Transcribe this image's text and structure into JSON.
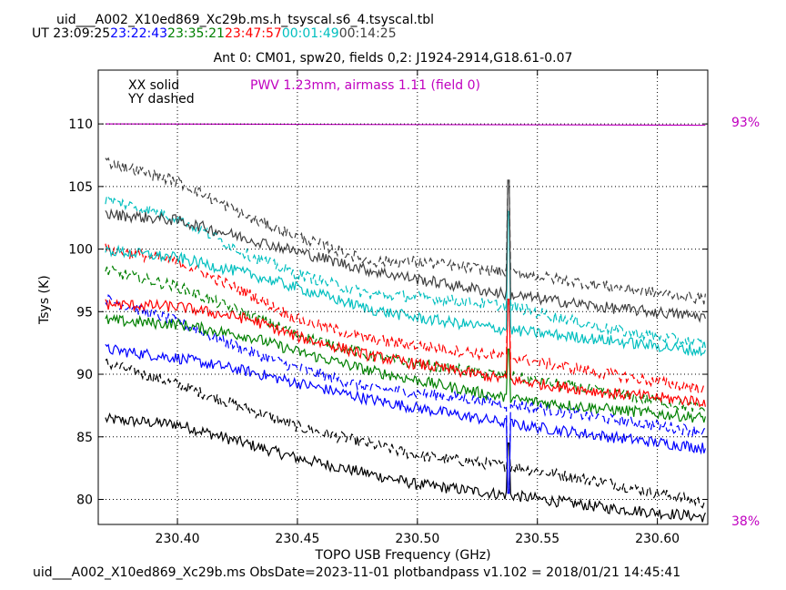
{
  "header": {
    "file_title": "uid___A002_X10ed869_Xc29b.ms.h_tsyscal.s6_4.tsyscal.tbl",
    "ut_label": "UT",
    "ut_times": [
      {
        "text": "23:09:25",
        "color": "#000000"
      },
      {
        "text": "23:22:43",
        "color": "#0000ff"
      },
      {
        "text": "23:35:21",
        "color": "#008000"
      },
      {
        "text": "23:47:57",
        "color": "#ff0000"
      },
      {
        "text": "00:01:49",
        "color": "#00bfbf"
      },
      {
        "text": "00:14:25",
        "color": "#404040"
      }
    ],
    "subtitle": "Ant 0: CM01,  spw20,  fields 0,2: J1924-2914,G18.61-0.07"
  },
  "footer": "uid___A002_X10ed869_Xc29b.ms  ObsDate=2023-11-01   plotbandpass v1.102 = 2018/01/21 14:45:41",
  "chart_data": {
    "type": "line",
    "xlabel": "TOPO USB Frequency (GHz)",
    "ylabel": "Tsys (K)",
    "xlim": [
      230.367,
      230.621
    ],
    "ylim": [
      78.0,
      114.3
    ],
    "xticks": [
      230.4,
      230.45,
      230.5,
      230.55,
      230.6
    ],
    "xtick_labels": [
      "230.40",
      "230.45",
      "230.50",
      "230.55",
      "230.60"
    ],
    "yticks": [
      80,
      85,
      90,
      95,
      100,
      105,
      110
    ],
    "ytick_labels": [
      "80",
      "85",
      "90",
      "95",
      "100",
      "105",
      "110"
    ],
    "grid": true,
    "annotations": {
      "legend_solid": "XX solid",
      "legend_dashed": "YY dashed",
      "pwv": "PWV 1.23mm, airmass 1.11 (field 0)",
      "pwv_color": "#c000c0",
      "right_top": "93%",
      "right_bottom": "38%"
    },
    "spike_x": 230.538,
    "series": [
      {
        "color": "#000000",
        "style": "solid",
        "x": [
          230.37,
          230.4,
          230.45,
          230.5,
          230.54,
          230.58,
          230.62
        ],
        "y": [
          86.4,
          86.0,
          83.3,
          81.2,
          80.3,
          79.3,
          78.6
        ],
        "spike": 84.5
      },
      {
        "color": "#000000",
        "style": "dashed",
        "x": [
          230.37,
          230.4,
          230.45,
          230.5,
          230.54,
          230.58,
          230.62
        ],
        "y": [
          90.9,
          89.2,
          85.8,
          83.5,
          82.6,
          81.3,
          79.7
        ],
        "spike": 84.5
      },
      {
        "color": "#0000ff",
        "style": "solid",
        "x": [
          230.37,
          230.4,
          230.43,
          230.45,
          230.48,
          230.5,
          230.54,
          230.58,
          230.62
        ],
        "y": [
          92.0,
          91.3,
          90.2,
          89.3,
          88.0,
          87.3,
          86.0,
          85.0,
          84.1
        ],
        "spike": 80.5
      },
      {
        "color": "#0000ff",
        "style": "dashed",
        "x": [
          230.37,
          230.4,
          230.43,
          230.45,
          230.48,
          230.5,
          230.54,
          230.58,
          230.62
        ],
        "y": [
          96.0,
          94.2,
          91.8,
          90.5,
          88.9,
          88.5,
          87.6,
          86.4,
          85.4
        ],
        "spike": 80.5
      },
      {
        "color": "#008000",
        "style": "solid",
        "x": [
          230.37,
          230.4,
          230.43,
          230.45,
          230.48,
          230.5,
          230.54,
          230.58,
          230.62
        ],
        "y": [
          94.3,
          94.0,
          93.0,
          91.8,
          90.3,
          89.5,
          88.0,
          87.2,
          86.5
        ],
        "spike": 92.0
      },
      {
        "color": "#008000",
        "style": "dashed",
        "x": [
          230.37,
          230.4,
          230.43,
          230.45,
          230.48,
          230.5,
          230.54,
          230.58,
          230.62
        ],
        "y": [
          98.3,
          97.0,
          94.7,
          93.2,
          91.5,
          90.8,
          89.8,
          88.5,
          87.2
        ],
        "spike": 92.0
      },
      {
        "color": "#ff0000",
        "style": "solid",
        "x": [
          230.37,
          230.4,
          230.43,
          230.45,
          230.48,
          230.5,
          230.54,
          230.58,
          230.62
        ],
        "y": [
          95.6,
          95.4,
          94.4,
          93.0,
          91.5,
          90.8,
          89.5,
          88.5,
          87.8
        ],
        "spike": 96.0
      },
      {
        "color": "#ff0000",
        "style": "dashed",
        "x": [
          230.37,
          230.4,
          230.43,
          230.45,
          230.48,
          230.5,
          230.54,
          230.58,
          230.62
        ],
        "y": [
          100.0,
          99.0,
          96.4,
          94.4,
          92.8,
          92.3,
          91.3,
          90.0,
          88.8
        ],
        "spike": 96.0
      },
      {
        "color": "#00bfbf",
        "style": "solid",
        "x": [
          230.37,
          230.4,
          230.43,
          230.45,
          230.48,
          230.5,
          230.54,
          230.58,
          230.62
        ],
        "y": [
          99.9,
          99.3,
          98.0,
          96.9,
          95.2,
          94.5,
          93.5,
          92.7,
          91.8
        ],
        "spike": 103.0
      },
      {
        "color": "#00bfbf",
        "style": "dashed",
        "x": [
          230.37,
          230.4,
          230.43,
          230.45,
          230.48,
          230.5,
          230.54,
          230.58,
          230.62
        ],
        "y": [
          104.0,
          102.5,
          99.5,
          98.0,
          96.4,
          96.2,
          95.4,
          93.6,
          92.4
        ],
        "spike": 103.0
      },
      {
        "color": "#404040",
        "style": "solid",
        "x": [
          230.37,
          230.4,
          230.43,
          230.45,
          230.48,
          230.5,
          230.54,
          230.58,
          230.62
        ],
        "y": [
          102.8,
          102.3,
          100.8,
          99.8,
          98.3,
          97.6,
          96.3,
          95.3,
          94.6
        ],
        "spike": 105.5
      },
      {
        "color": "#404040",
        "style": "dashed",
        "x": [
          230.37,
          230.4,
          230.43,
          230.45,
          230.48,
          230.5,
          230.54,
          230.58,
          230.62
        ],
        "y": [
          107.0,
          105.4,
          102.5,
          101.0,
          99.0,
          99.0,
          98.1,
          97.0,
          96.0
        ],
        "spike": 105.5
      },
      {
        "color": "#c000c0",
        "style": "solid",
        "x": [
          230.37,
          230.62
        ],
        "y": [
          110.0,
          109.9
        ],
        "spike": null
      }
    ]
  }
}
